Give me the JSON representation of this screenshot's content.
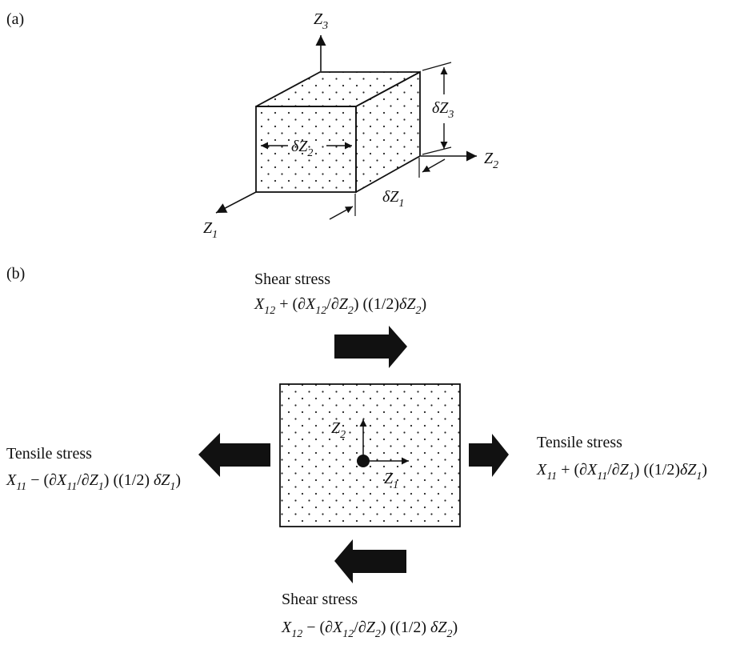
{
  "panel_a": {
    "label": "(a)",
    "axes": {
      "z1": "Z",
      "z1_sub": "1",
      "z2": "Z",
      "z2_sub": "2",
      "z3": "Z",
      "z3_sub": "3"
    },
    "dims": {
      "dz1": "δZ",
      "dz1_sub": "1",
      "dz2": "δZ",
      "dz2_sub": "2",
      "dz3": "δZ",
      "dz3_sub": "3"
    }
  },
  "panel_b": {
    "label": "(b)",
    "shear_top": {
      "title": "Shear stress",
      "f1": "X",
      "f1_sub": "12",
      "f2": " + (∂",
      "f3": "X",
      "f3_sub": "12",
      "f4": "/∂",
      "f5": "Z",
      "f5_sub": "2",
      "f6": ") ((1/2)",
      "f7": "δZ",
      "f7_sub": "2",
      "f8": ")"
    },
    "shear_bottom": {
      "title": "Shear stress",
      "f1": "X",
      "f1_sub": "12",
      "f2": " − (∂",
      "f3": "X",
      "f3_sub": "12",
      "f4": "/∂",
      "f5": "Z",
      "f5_sub": "2",
      "f6": ") ((1/2) ",
      "f7": "δZ",
      "f7_sub": "2",
      "f8": ")"
    },
    "tensile_left": {
      "title": "Tensile stress",
      "f1": "X",
      "f1_sub": "11",
      "f2": " − (∂",
      "f3": "X",
      "f3_sub": "11",
      "f4": "/∂",
      "f5": "Z",
      "f5_sub": "1",
      "f6": ") ((1/2) ",
      "f7": "δZ",
      "f7_sub": "1",
      "f8": ")"
    },
    "tensile_right": {
      "title": "Tensile stress",
      "f1": "X",
      "f1_sub": "11",
      "f2": " + (∂",
      "f3": "X",
      "f3_sub": "11",
      "f4": "/∂",
      "f5": "Z",
      "f5_sub": "1",
      "f6": ") ((1/2)",
      "f7": "δZ",
      "f7_sub": "1",
      "f8": ")"
    },
    "local_axes": {
      "z1": "Z",
      "z1_sub": "1",
      "z2": "Z",
      "z2_sub": "2"
    }
  }
}
